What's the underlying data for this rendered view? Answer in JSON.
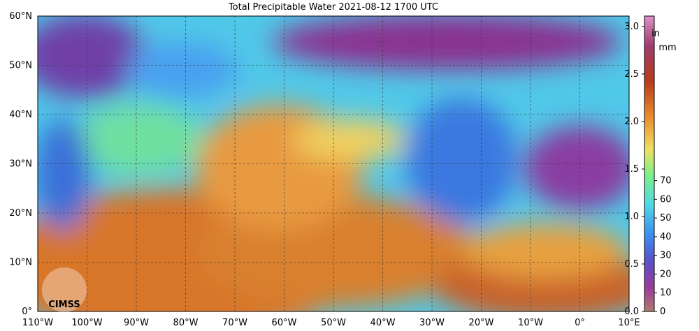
{
  "title": "Total Precipitable Water  2021-08-12 1700 UTC",
  "lat_labels": [
    "0°",
    "10°N",
    "20°N",
    "30°N",
    "40°N",
    "50°N",
    "60°N"
  ],
  "lon_labels": [
    "110°W",
    "100°W",
    "90°W",
    "80°W",
    "70°W",
    "60°W",
    "50°W",
    "40°W",
    "30°W",
    "20°W",
    "10°W",
    "0°",
    "10°E"
  ],
  "colorbar": {
    "in_unit": "in",
    "mm_unit": "mm",
    "in_labels": [
      "0.0",
      "0.5",
      "1.0",
      "1.5",
      "2.0",
      "2.5",
      "3.0"
    ],
    "mm_labels": [
      "0",
      "10",
      "20",
      "30",
      "40",
      "50",
      "60",
      "70"
    ]
  },
  "logo": "CIMSS"
}
